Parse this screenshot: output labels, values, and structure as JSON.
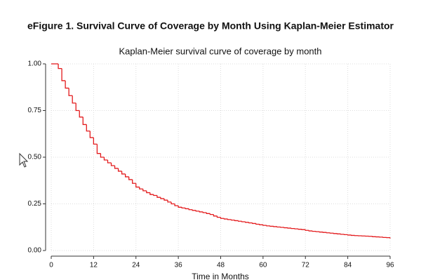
{
  "figure_title": "eFigure 1. Survival Curve of Coverage by Month Using Kaplan-Meier Estimator",
  "chart_data": {
    "type": "step",
    "title": "Kaplan-Meier survival curve of coverage by month",
    "x_label": "Time in Months",
    "color": "#e31a1c",
    "grid": true,
    "xlim": [
      0,
      96
    ],
    "xticks": [
      0,
      12,
      24,
      36,
      48,
      60,
      72,
      84,
      96
    ],
    "ylim": [
      0,
      1
    ],
    "yticks": [
      {
        "value": 0,
        "label": "0.00"
      },
      {
        "value": 0.25,
        "label": "0.25"
      },
      {
        "value": 0.5,
        "label": "0.50"
      },
      {
        "value": 0.75,
        "label": "0.75"
      },
      {
        "value": 1,
        "label": "1.00"
      }
    ],
    "x": [
      0,
      1,
      2,
      3,
      4,
      5,
      6,
      7,
      8,
      9,
      10,
      11,
      12,
      13,
      14,
      15,
      16,
      17,
      18,
      19,
      20,
      21,
      22,
      23,
      24,
      25,
      26,
      27,
      28,
      29,
      30,
      31,
      32,
      33,
      34,
      35,
      36,
      37,
      38,
      39,
      40,
      41,
      42,
      43,
      44,
      45,
      46,
      47,
      48,
      49,
      50,
      51,
      52,
      53,
      54,
      55,
      56,
      57,
      58,
      59,
      60,
      61,
      62,
      63,
      64,
      65,
      66,
      67,
      68,
      69,
      70,
      71,
      72,
      73,
      74,
      75,
      76,
      77,
      78,
      79,
      80,
      81,
      82,
      83,
      84,
      85,
      86,
      87,
      88,
      89,
      90,
      91,
      92,
      93,
      94,
      95,
      96
    ],
    "values": [
      1,
      1,
      0.975,
      0.91,
      0.87,
      0.83,
      0.79,
      0.75,
      0.715,
      0.675,
      0.64,
      0.605,
      0.57,
      0.52,
      0.5,
      0.485,
      0.47,
      0.455,
      0.44,
      0.425,
      0.41,
      0.395,
      0.38,
      0.36,
      0.34,
      0.33,
      0.32,
      0.31,
      0.3,
      0.295,
      0.285,
      0.278,
      0.27,
      0.26,
      0.25,
      0.24,
      0.232,
      0.228,
      0.224,
      0.219,
      0.215,
      0.211,
      0.207,
      0.203,
      0.198,
      0.193,
      0.185,
      0.178,
      0.172,
      0.169,
      0.166,
      0.163,
      0.16,
      0.157,
      0.154,
      0.151,
      0.148,
      0.145,
      0.141,
      0.138,
      0.135,
      0.132,
      0.13,
      0.128,
      0.126,
      0.124,
      0.122,
      0.12,
      0.118,
      0.116,
      0.114,
      0.112,
      0.108,
      0.105,
      0.103,
      0.101,
      0.099,
      0.097,
      0.095,
      0.093,
      0.091,
      0.089,
      0.087,
      0.085,
      0.083,
      0.081,
      0.08,
      0.079,
      0.078,
      0.077,
      0.076,
      0.074,
      0.073,
      0.072,
      0.07,
      0.069,
      0.067
    ]
  }
}
